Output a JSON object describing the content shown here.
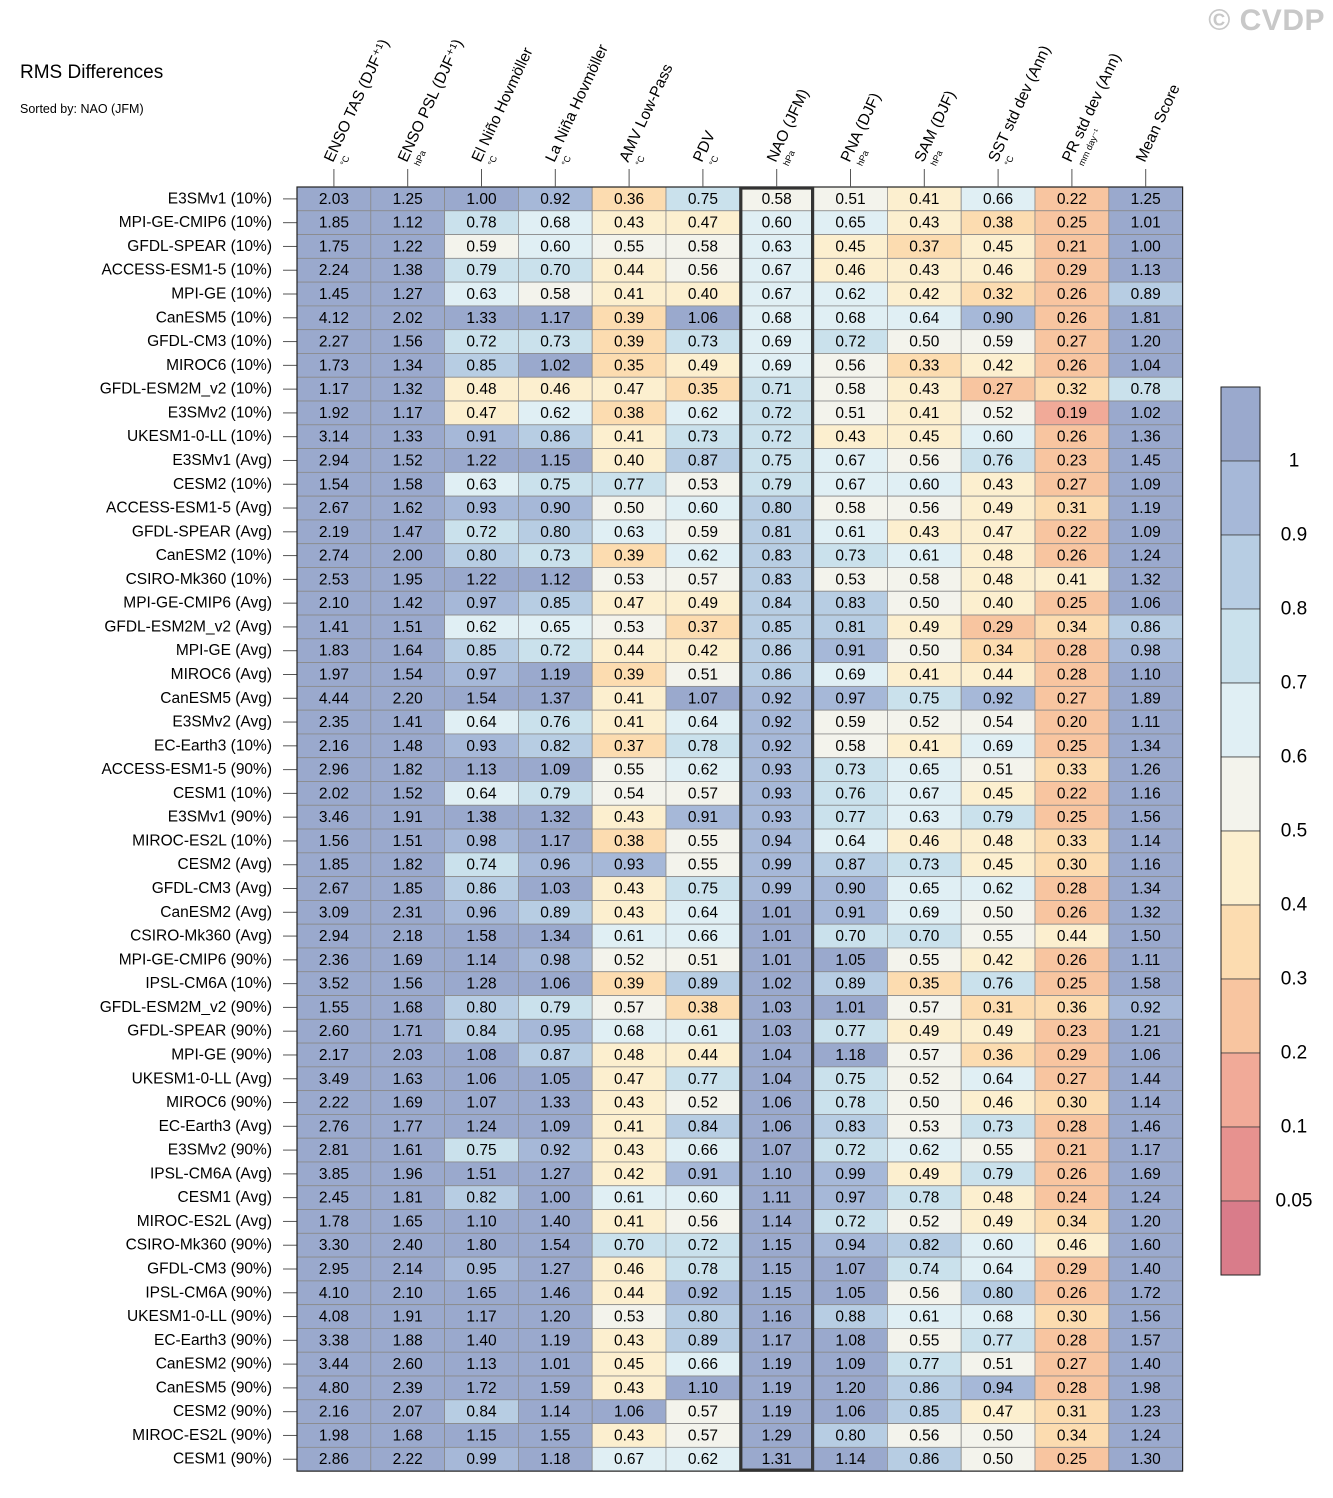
{
  "title": "RMS Differences",
  "subtitle": "Sorted by: NAO (JFM)",
  "watermark": "© CVDP",
  "chart_data": {
    "type": "heatmap",
    "highlighted_column": "NAO (JFM)",
    "columns": [
      {
        "label": "ENSO TAS (DJF⁺¹)",
        "unit": "°C"
      },
      {
        "label": "ENSO PSL (DJF⁺¹)",
        "unit": "hPa"
      },
      {
        "label": "El Niño Hovmöller",
        "unit": "°C"
      },
      {
        "label": "La Niña Hovmöller",
        "unit": "°C"
      },
      {
        "label": "AMV Low-Pass",
        "unit": "°C"
      },
      {
        "label": "PDV",
        "unit": "°C"
      },
      {
        "label": "NAO (JFM)",
        "unit": "hPa"
      },
      {
        "label": "PNA (DJF)",
        "unit": "hPa"
      },
      {
        "label": "SAM (DJF)",
        "unit": "hPa"
      },
      {
        "label": "SST std dev (Ann)",
        "unit": "°C"
      },
      {
        "label": "PR std dev (Ann)",
        "unit": "mm day⁻¹"
      },
      {
        "label": "Mean Score",
        "unit": ""
      }
    ],
    "rows": [
      "E3SMv1 (10%)",
      "MPI-GE-CMIP6 (10%)",
      "GFDL-SPEAR (10%)",
      "ACCESS-ESM1-5 (10%)",
      "MPI-GE (10%)",
      "CanESM5 (10%)",
      "GFDL-CM3 (10%)",
      "MIROC6 (10%)",
      "GFDL-ESM2M_v2 (10%)",
      "E3SMv2 (10%)",
      "UKESM1-0-LL (10%)",
      "E3SMv1 (Avg)",
      "CESM2 (10%)",
      "ACCESS-ESM1-5 (Avg)",
      "GFDL-SPEAR (Avg)",
      "CanESM2 (10%)",
      "CSIRO-Mk360 (10%)",
      "MPI-GE-CMIP6 (Avg)",
      "GFDL-ESM2M_v2 (Avg)",
      "MPI-GE (Avg)",
      "MIROC6 (Avg)",
      "CanESM5 (Avg)",
      "E3SMv2 (Avg)",
      "EC-Earth3 (10%)",
      "ACCESS-ESM1-5 (90%)",
      "CESM1 (10%)",
      "E3SMv1 (90%)",
      "MIROC-ES2L (10%)",
      "CESM2 (Avg)",
      "GFDL-CM3 (Avg)",
      "CanESM2 (Avg)",
      "CSIRO-Mk360 (Avg)",
      "MPI-GE-CMIP6 (90%)",
      "IPSL-CM6A (10%)",
      "GFDL-ESM2M_v2 (90%)",
      "GFDL-SPEAR (90%)",
      "MPI-GE (90%)",
      "UKESM1-0-LL (Avg)",
      "MIROC6 (90%)",
      "EC-Earth3 (Avg)",
      "E3SMv2 (90%)",
      "IPSL-CM6A (Avg)",
      "CESM1 (Avg)",
      "MIROC-ES2L (Avg)",
      "CSIRO-Mk360 (90%)",
      "GFDL-CM3 (90%)",
      "IPSL-CM6A (90%)",
      "UKESM1-0-LL (90%)",
      "EC-Earth3 (90%)",
      "CanESM2 (90%)",
      "CanESM5 (90%)",
      "CESM2 (90%)",
      "MIROC-ES2L (90%)",
      "CESM1 (90%)"
    ],
    "values": [
      [
        "2.03",
        "1.25",
        "1.00",
        "0.92",
        "0.36",
        "0.75",
        "0.58",
        "0.51",
        "0.41",
        "0.66",
        "0.22",
        "1.25"
      ],
      [
        "1.85",
        "1.12",
        "0.78",
        "0.68",
        "0.43",
        "0.47",
        "0.60",
        "0.65",
        "0.43",
        "0.38",
        "0.25",
        "1.01"
      ],
      [
        "1.75",
        "1.22",
        "0.59",
        "0.60",
        "0.55",
        "0.58",
        "0.63",
        "0.45",
        "0.37",
        "0.45",
        "0.21",
        "1.00"
      ],
      [
        "2.24",
        "1.38",
        "0.79",
        "0.70",
        "0.44",
        "0.56",
        "0.67",
        "0.46",
        "0.43",
        "0.46",
        "0.29",
        "1.13"
      ],
      [
        "1.45",
        "1.27",
        "0.63",
        "0.58",
        "0.41",
        "0.40",
        "0.67",
        "0.62",
        "0.42",
        "0.32",
        "0.26",
        "0.89"
      ],
      [
        "4.12",
        "2.02",
        "1.33",
        "1.17",
        "0.39",
        "1.06",
        "0.68",
        "0.68",
        "0.64",
        "0.90",
        "0.26",
        "1.81"
      ],
      [
        "2.27",
        "1.56",
        "0.72",
        "0.73",
        "0.39",
        "0.73",
        "0.69",
        "0.72",
        "0.50",
        "0.59",
        "0.27",
        "1.20"
      ],
      [
        "1.73",
        "1.34",
        "0.85",
        "1.02",
        "0.35",
        "0.49",
        "0.69",
        "0.56",
        "0.33",
        "0.42",
        "0.26",
        "1.04"
      ],
      [
        "1.17",
        "1.32",
        "0.48",
        "0.46",
        "0.47",
        "0.35",
        "0.71",
        "0.58",
        "0.43",
        "0.27",
        "0.32",
        "0.78"
      ],
      [
        "1.92",
        "1.17",
        "0.47",
        "0.62",
        "0.38",
        "0.62",
        "0.72",
        "0.51",
        "0.41",
        "0.52",
        "0.19",
        "1.02"
      ],
      [
        "3.14",
        "1.33",
        "0.91",
        "0.86",
        "0.41",
        "0.73",
        "0.72",
        "0.43",
        "0.45",
        "0.60",
        "0.26",
        "1.36"
      ],
      [
        "2.94",
        "1.52",
        "1.22",
        "1.15",
        "0.40",
        "0.87",
        "0.75",
        "0.67",
        "0.56",
        "0.76",
        "0.23",
        "1.45"
      ],
      [
        "1.54",
        "1.58",
        "0.63",
        "0.75",
        "0.77",
        "0.53",
        "0.79",
        "0.67",
        "0.60",
        "0.43",
        "0.27",
        "1.09"
      ],
      [
        "2.67",
        "1.62",
        "0.93",
        "0.90",
        "0.50",
        "0.60",
        "0.80",
        "0.58",
        "0.56",
        "0.49",
        "0.31",
        "1.19"
      ],
      [
        "2.19",
        "1.47",
        "0.72",
        "0.80",
        "0.63",
        "0.59",
        "0.81",
        "0.61",
        "0.43",
        "0.47",
        "0.22",
        "1.09"
      ],
      [
        "2.74",
        "2.00",
        "0.80",
        "0.73",
        "0.39",
        "0.62",
        "0.83",
        "0.73",
        "0.61",
        "0.48",
        "0.26",
        "1.24"
      ],
      [
        "2.53",
        "1.95",
        "1.22",
        "1.12",
        "0.53",
        "0.57",
        "0.83",
        "0.53",
        "0.58",
        "0.48",
        "0.41",
        "1.32"
      ],
      [
        "2.10",
        "1.42",
        "0.97",
        "0.85",
        "0.47",
        "0.49",
        "0.84",
        "0.83",
        "0.50",
        "0.40",
        "0.25",
        "1.06"
      ],
      [
        "1.41",
        "1.51",
        "0.62",
        "0.65",
        "0.53",
        "0.37",
        "0.85",
        "0.81",
        "0.49",
        "0.29",
        "0.34",
        "0.86"
      ],
      [
        "1.83",
        "1.64",
        "0.85",
        "0.72",
        "0.44",
        "0.42",
        "0.86",
        "0.91",
        "0.50",
        "0.34",
        "0.28",
        "0.98"
      ],
      [
        "1.97",
        "1.54",
        "0.97",
        "1.19",
        "0.39",
        "0.51",
        "0.86",
        "0.69",
        "0.41",
        "0.44",
        "0.28",
        "1.10"
      ],
      [
        "4.44",
        "2.20",
        "1.54",
        "1.37",
        "0.41",
        "1.07",
        "0.92",
        "0.97",
        "0.75",
        "0.92",
        "0.27",
        "1.89"
      ],
      [
        "2.35",
        "1.41",
        "0.64",
        "0.76",
        "0.41",
        "0.64",
        "0.92",
        "0.59",
        "0.52",
        "0.54",
        "0.20",
        "1.11"
      ],
      [
        "2.16",
        "1.48",
        "0.93",
        "0.82",
        "0.37",
        "0.78",
        "0.92",
        "0.58",
        "0.41",
        "0.69",
        "0.25",
        "1.34"
      ],
      [
        "2.96",
        "1.82",
        "1.13",
        "1.09",
        "0.55",
        "0.62",
        "0.93",
        "0.73",
        "0.65",
        "0.51",
        "0.33",
        "1.26"
      ],
      [
        "2.02",
        "1.52",
        "0.64",
        "0.79",
        "0.54",
        "0.57",
        "0.93",
        "0.76",
        "0.67",
        "0.45",
        "0.22",
        "1.16"
      ],
      [
        "3.46",
        "1.91",
        "1.38",
        "1.32",
        "0.43",
        "0.91",
        "0.93",
        "0.77",
        "0.63",
        "0.79",
        "0.25",
        "1.56"
      ],
      [
        "1.56",
        "1.51",
        "0.98",
        "1.17",
        "0.38",
        "0.55",
        "0.94",
        "0.64",
        "0.46",
        "0.48",
        "0.33",
        "1.14"
      ],
      [
        "1.85",
        "1.82",
        "0.74",
        "0.96",
        "0.93",
        "0.55",
        "0.99",
        "0.87",
        "0.73",
        "0.45",
        "0.30",
        "1.16"
      ],
      [
        "2.67",
        "1.85",
        "0.86",
        "1.03",
        "0.43",
        "0.75",
        "0.99",
        "0.90",
        "0.65",
        "0.62",
        "0.28",
        "1.34"
      ],
      [
        "3.09",
        "2.31",
        "0.96",
        "0.89",
        "0.43",
        "0.64",
        "1.01",
        "0.91",
        "0.69",
        "0.50",
        "0.26",
        "1.32"
      ],
      [
        "2.94",
        "2.18",
        "1.58",
        "1.34",
        "0.61",
        "0.66",
        "1.01",
        "0.70",
        "0.70",
        "0.55",
        "0.44",
        "1.50"
      ],
      [
        "2.36",
        "1.69",
        "1.14",
        "0.98",
        "0.52",
        "0.51",
        "1.01",
        "1.05",
        "0.55",
        "0.42",
        "0.26",
        "1.11"
      ],
      [
        "3.52",
        "1.56",
        "1.28",
        "1.06",
        "0.39",
        "0.89",
        "1.02",
        "0.89",
        "0.35",
        "0.76",
        "0.25",
        "1.58"
      ],
      [
        "1.55",
        "1.68",
        "0.80",
        "0.79",
        "0.57",
        "0.38",
        "1.03",
        "1.01",
        "0.57",
        "0.31",
        "0.36",
        "0.92"
      ],
      [
        "2.60",
        "1.71",
        "0.84",
        "0.95",
        "0.68",
        "0.61",
        "1.03",
        "0.77",
        "0.49",
        "0.49",
        "0.23",
        "1.21"
      ],
      [
        "2.17",
        "2.03",
        "1.08",
        "0.87",
        "0.48",
        "0.44",
        "1.04",
        "1.18",
        "0.57",
        "0.36",
        "0.29",
        "1.06"
      ],
      [
        "3.49",
        "1.63",
        "1.06",
        "1.05",
        "0.47",
        "0.77",
        "1.04",
        "0.75",
        "0.52",
        "0.64",
        "0.27",
        "1.44"
      ],
      [
        "2.22",
        "1.69",
        "1.07",
        "1.33",
        "0.43",
        "0.52",
        "1.06",
        "0.78",
        "0.50",
        "0.46",
        "0.30",
        "1.14"
      ],
      [
        "2.76",
        "1.77",
        "1.24",
        "1.09",
        "0.41",
        "0.84",
        "1.06",
        "0.83",
        "0.53",
        "0.73",
        "0.28",
        "1.46"
      ],
      [
        "2.81",
        "1.61",
        "0.75",
        "0.92",
        "0.43",
        "0.66",
        "1.07",
        "0.72",
        "0.62",
        "0.55",
        "0.21",
        "1.17"
      ],
      [
        "3.85",
        "1.96",
        "1.51",
        "1.27",
        "0.42",
        "0.91",
        "1.10",
        "0.99",
        "0.49",
        "0.79",
        "0.26",
        "1.69"
      ],
      [
        "2.45",
        "1.81",
        "0.82",
        "1.00",
        "0.61",
        "0.60",
        "1.11",
        "0.97",
        "0.78",
        "0.48",
        "0.24",
        "1.24"
      ],
      [
        "1.78",
        "1.65",
        "1.10",
        "1.40",
        "0.41",
        "0.56",
        "1.14",
        "0.72",
        "0.52",
        "0.49",
        "0.34",
        "1.20"
      ],
      [
        "3.30",
        "2.40",
        "1.80",
        "1.54",
        "0.70",
        "0.72",
        "1.15",
        "0.94",
        "0.82",
        "0.60",
        "0.46",
        "1.60"
      ],
      [
        "2.95",
        "2.14",
        "0.95",
        "1.27",
        "0.46",
        "0.78",
        "1.15",
        "1.07",
        "0.74",
        "0.64",
        "0.29",
        "1.40"
      ],
      [
        "4.10",
        "2.10",
        "1.65",
        "1.46",
        "0.44",
        "0.92",
        "1.15",
        "1.05",
        "0.56",
        "0.80",
        "0.26",
        "1.72"
      ],
      [
        "4.08",
        "1.91",
        "1.17",
        "1.20",
        "0.53",
        "0.80",
        "1.16",
        "0.88",
        "0.61",
        "0.68",
        "0.30",
        "1.56"
      ],
      [
        "3.38",
        "1.88",
        "1.40",
        "1.19",
        "0.43",
        "0.89",
        "1.17",
        "1.08",
        "0.55",
        "0.77",
        "0.28",
        "1.57"
      ],
      [
        "3.44",
        "2.60",
        "1.13",
        "1.01",
        "0.45",
        "0.66",
        "1.19",
        "1.09",
        "0.77",
        "0.51",
        "0.27",
        "1.40"
      ],
      [
        "4.80",
        "2.39",
        "1.72",
        "1.59",
        "0.43",
        "1.10",
        "1.19",
        "1.20",
        "0.86",
        "0.94",
        "0.28",
        "1.98"
      ],
      [
        "2.16",
        "2.07",
        "0.84",
        "1.14",
        "1.06",
        "0.57",
        "1.19",
        "1.06",
        "0.85",
        "0.47",
        "0.31",
        "1.23"
      ],
      [
        "1.98",
        "1.68",
        "1.15",
        "1.55",
        "0.43",
        "0.57",
        "1.29",
        "0.80",
        "0.56",
        "0.50",
        "0.34",
        "1.24"
      ],
      [
        "2.86",
        "2.22",
        "0.99",
        "1.18",
        "0.67",
        "0.62",
        "1.31",
        "1.14",
        "0.86",
        "0.50",
        "0.25",
        "1.30"
      ]
    ],
    "colorbar": {
      "boundaries": [
        0.05,
        0.1,
        0.2,
        0.3,
        0.4,
        0.5,
        0.6,
        0.7,
        0.8,
        0.9,
        1
      ],
      "labels": [
        "1",
        "0.9",
        "0.8",
        "0.7",
        "0.6",
        "0.5",
        "0.4",
        "0.3",
        "0.2",
        "0.1",
        "0.05"
      ],
      "colors_top_to_bottom": [
        "#9aa9cd",
        "#a6b8d8",
        "#b7cde3",
        "#cae1ec",
        "#e0eff4",
        "#f3f3ec",
        "#fcefcf",
        "#fcdcb0",
        "#f8c5a0",
        "#f1aa98",
        "#e7928f",
        "#d97c8a"
      ]
    }
  }
}
